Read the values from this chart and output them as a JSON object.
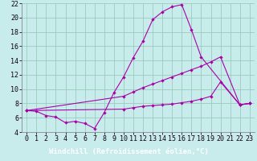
{
  "xlabel": "Windchill (Refroidissement éolien,°C)",
  "bg_color": "#c8ecec",
  "label_bar_color": "#6666aa",
  "grid_color": "#99ccbb",
  "line_color": "#aa00aa",
  "xlim": [
    -0.5,
    23.5
  ],
  "ylim": [
    4,
    22
  ],
  "xticks": [
    0,
    1,
    2,
    3,
    4,
    5,
    6,
    7,
    8,
    9,
    10,
    11,
    12,
    13,
    14,
    15,
    16,
    17,
    18,
    19,
    20,
    21,
    22,
    23
  ],
  "yticks": [
    4,
    6,
    8,
    10,
    12,
    14,
    16,
    18,
    20,
    22
  ],
  "curve1_x": [
    0,
    1,
    2,
    3,
    4,
    5,
    6,
    7,
    8,
    9,
    10,
    11,
    12,
    13,
    14,
    15,
    16,
    17,
    18,
    22,
    23
  ],
  "curve1_y": [
    7.0,
    6.9,
    6.3,
    6.1,
    5.3,
    5.5,
    5.2,
    4.5,
    6.7,
    9.5,
    11.7,
    14.4,
    16.7,
    19.7,
    20.8,
    21.5,
    21.8,
    18.3,
    14.5,
    7.8,
    8.0
  ],
  "curve2_x": [
    0,
    10,
    11,
    12,
    13,
    14,
    15,
    16,
    17,
    18,
    19,
    20,
    22,
    23
  ],
  "curve2_y": [
    7.0,
    9.0,
    9.6,
    10.2,
    10.7,
    11.2,
    11.7,
    12.2,
    12.7,
    13.2,
    13.8,
    14.5,
    7.8,
    8.0
  ],
  "curve3_x": [
    0,
    10,
    11,
    12,
    13,
    14,
    15,
    16,
    17,
    18,
    19,
    20,
    22,
    23
  ],
  "curve3_y": [
    7.0,
    7.2,
    7.4,
    7.6,
    7.7,
    7.8,
    7.9,
    8.1,
    8.3,
    8.6,
    9.0,
    11.0,
    7.8,
    8.0
  ],
  "xlabel_fontsize": 6.5,
  "tick_fontsize": 6,
  "marker_size": 2.2,
  "linewidth": 0.8
}
